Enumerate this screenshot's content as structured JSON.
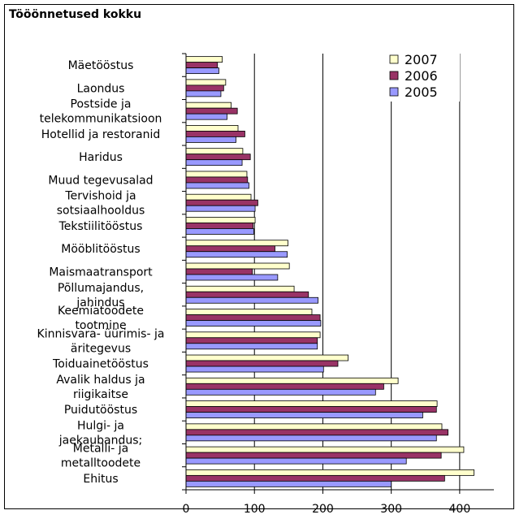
{
  "chart_data": {
    "type": "bar",
    "orientation": "horizontal",
    "title": "Tööönnetused kokku",
    "xlim": [
      0,
      450
    ],
    "xticks": [
      0,
      100,
      200,
      300,
      400
    ],
    "grid": true,
    "legend_position": "top-right",
    "categories": [
      "Mäetööstus",
      "Laondus",
      "Postside ja telekommunikatsioon",
      "Hotellid ja restoranid",
      "Haridus",
      "Muud tegevusalad",
      "Tervishoid ja sotsiaalhooldus",
      "Tekstiilitööstus",
      "Mööblitööstus",
      "Maismaatransport",
      "Põllumajandus, jahindus",
      "Keemiatoodete tootmine",
      "Kinnisvara- üürimis- ja äritegevus",
      "Toiduainetööstus",
      "Avalik haldus ja riigikaitse",
      "Puidutööstus",
      "Hulgi- ja jaekaubandus;",
      "Metalli- ja metalltoodete",
      "Ehitus"
    ],
    "category_lines": [
      [
        "Mäetööstus"
      ],
      [
        "Laondus"
      ],
      [
        "Postside ja",
        "telekommunikatsioon"
      ],
      [
        "Hotellid ja restoranid"
      ],
      [
        "Haridus"
      ],
      [
        "Muud tegevusalad"
      ],
      [
        "Tervishoid ja",
        "sotsiaalhooldus"
      ],
      [
        "Tekstiilitööstus"
      ],
      [
        "Mööblitööstus"
      ],
      [
        "Maismaatransport"
      ],
      [
        "Põllumajandus,",
        "jahindus"
      ],
      [
        "Keemiatoodete",
        "tootmine"
      ],
      [
        "Kinnisvara- üürimis- ja",
        "äritegevus"
      ],
      [
        "Toiduainetööstus"
      ],
      [
        "Avalik haldus ja",
        "riigikaitse"
      ],
      [
        "Puidutööstus"
      ],
      [
        "Hulgi- ja",
        "jaekaubandus;"
      ],
      [
        "Metalli- ja",
        "metalltoodete"
      ],
      [
        "Ehitus"
      ]
    ],
    "series": [
      {
        "name": "2007",
        "color": "#FFFFCC",
        "values": [
          53,
          58,
          66,
          76,
          83,
          89,
          95,
          101,
          149,
          151,
          158,
          184,
          196,
          237,
          310,
          367,
          374,
          406,
          421
        ]
      },
      {
        "name": "2006",
        "color": "#993366",
        "values": [
          46,
          55,
          75,
          86,
          94,
          90,
          105,
          98,
          130,
          97,
          179,
          196,
          192,
          222,
          289,
          366,
          383,
          373,
          378
        ]
      },
      {
        "name": "2005",
        "color": "#9999FF",
        "values": [
          48,
          51,
          60,
          73,
          82,
          92,
          101,
          99,
          148,
          134,
          193,
          197,
          192,
          201,
          277,
          346,
          366,
          322,
          300
        ]
      }
    ]
  }
}
